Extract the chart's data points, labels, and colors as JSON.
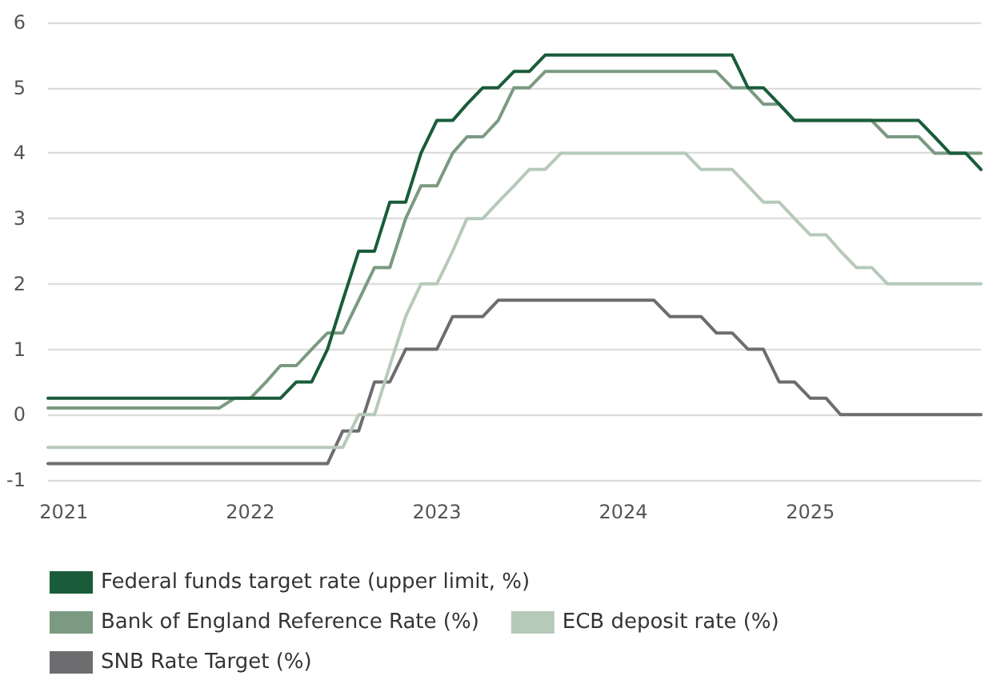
{
  "chart_data": {
    "type": "line",
    "x": [
      "2020-12",
      "2021-01",
      "2021-02",
      "2021-03",
      "2021-04",
      "2021-05",
      "2021-06",
      "2021-07",
      "2021-08",
      "2021-09",
      "2021-10",
      "2021-11",
      "2021-12",
      "2022-01",
      "2022-02",
      "2022-03",
      "2022-04",
      "2022-05",
      "2022-06",
      "2022-07",
      "2022-08",
      "2022-09",
      "2022-10",
      "2022-11",
      "2022-12",
      "2023-01",
      "2023-02",
      "2023-03",
      "2023-04",
      "2023-05",
      "2023-06",
      "2023-07",
      "2023-08",
      "2023-09",
      "2023-10",
      "2023-11",
      "2023-12",
      "2024-01",
      "2024-02",
      "2024-03",
      "2024-04",
      "2024-05",
      "2024-06",
      "2024-07",
      "2024-08",
      "2024-09",
      "2024-10",
      "2024-11",
      "2024-12",
      "2025-01",
      "2025-02",
      "2025-03",
      "2025-04",
      "2025-05",
      "2025-06",
      "2025-07",
      "2025-08",
      "2025-09",
      "2025-10",
      "2025-11",
      "2025-12"
    ],
    "series": [
      {
        "name": "Federal funds target rate (upper limit, %)",
        "color": "#1a5c3a",
        "values": [
          0.25,
          0.25,
          0.25,
          0.25,
          0.25,
          0.25,
          0.25,
          0.25,
          0.25,
          0.25,
          0.25,
          0.25,
          0.25,
          0.25,
          0.25,
          0.25,
          0.5,
          0.5,
          1.0,
          1.75,
          2.5,
          2.5,
          3.25,
          3.25,
          4.0,
          4.5,
          4.5,
          4.75,
          5.0,
          5.0,
          5.25,
          5.25,
          5.5,
          5.5,
          5.5,
          5.5,
          5.5,
          5.5,
          5.5,
          5.5,
          5.5,
          5.5,
          5.5,
          5.5,
          5.5,
          5.0,
          5.0,
          4.75,
          4.5,
          4.5,
          4.5,
          4.5,
          4.5,
          4.5,
          4.5,
          4.5,
          4.5,
          4.25,
          4.0,
          4.0,
          3.75
        ]
      },
      {
        "name": "Bank of England Reference Rate (%)",
        "color": "#7b9a81",
        "values": [
          0.1,
          0.1,
          0.1,
          0.1,
          0.1,
          0.1,
          0.1,
          0.1,
          0.1,
          0.1,
          0.1,
          0.1,
          0.25,
          0.25,
          0.5,
          0.75,
          0.75,
          1.0,
          1.25,
          1.25,
          1.75,
          2.25,
          2.25,
          3.0,
          3.5,
          3.5,
          4.0,
          4.25,
          4.25,
          4.5,
          5.0,
          5.0,
          5.25,
          5.25,
          5.25,
          5.25,
          5.25,
          5.25,
          5.25,
          5.25,
          5.25,
          5.25,
          5.25,
          5.25,
          5.0,
          5.0,
          4.75,
          4.75,
          4.5,
          4.5,
          4.5,
          4.5,
          4.5,
          4.5,
          4.25,
          4.25,
          4.25,
          4.0,
          4.0,
          4.0,
          4.0
        ]
      },
      {
        "name": "ECB deposit rate (%)",
        "color": "#b7c9b9",
        "values": [
          -0.5,
          -0.5,
          -0.5,
          -0.5,
          -0.5,
          -0.5,
          -0.5,
          -0.5,
          -0.5,
          -0.5,
          -0.5,
          -0.5,
          -0.5,
          -0.5,
          -0.5,
          -0.5,
          -0.5,
          -0.5,
          -0.5,
          -0.5,
          0,
          0,
          0.75,
          1.5,
          2.0,
          2.0,
          2.5,
          3.0,
          3.0,
          3.25,
          3.5,
          3.75,
          3.75,
          4.0,
          4.0,
          4.0,
          4.0,
          4.0,
          4.0,
          4.0,
          4.0,
          4.0,
          3.75,
          3.75,
          3.75,
          3.5,
          3.25,
          3.25,
          3.0,
          2.75,
          2.75,
          2.5,
          2.25,
          2.25,
          2.0,
          2.0,
          2.0,
          2.0,
          2.0,
          2.0,
          2.0
        ]
      },
      {
        "name": "SNB Rate Target (%)",
        "color": "#6d6d70",
        "values": [
          -0.75,
          -0.75,
          -0.75,
          -0.75,
          -0.75,
          -0.75,
          -0.75,
          -0.75,
          -0.75,
          -0.75,
          -0.75,
          -0.75,
          -0.75,
          -0.75,
          -0.75,
          -0.75,
          -0.75,
          -0.75,
          -0.75,
          -0.25,
          -0.25,
          0.5,
          0.5,
          1.0,
          1.0,
          1.0,
          1.5,
          1.5,
          1.5,
          1.75,
          1.75,
          1.75,
          1.75,
          1.75,
          1.75,
          1.75,
          1.75,
          1.75,
          1.75,
          1.75,
          1.5,
          1.5,
          1.5,
          1.25,
          1.25,
          1.0,
          1.0,
          0.5,
          0.5,
          0.25,
          0.25,
          0,
          0,
          0,
          0,
          0,
          0,
          0,
          0,
          0,
          0
        ]
      }
    ],
    "xlim": [
      "2020-12",
      "2025-12"
    ],
    "xticks": [
      {
        "value": "2021-01",
        "label": "2021"
      },
      {
        "value": "2022-01",
        "label": "2022"
      },
      {
        "value": "2023-01",
        "label": "2023"
      },
      {
        "value": "2024-01",
        "label": "2024"
      },
      {
        "value": "2025-01",
        "label": "2025"
      }
    ],
    "ylim": [
      -1,
      6
    ],
    "yticks": [
      -1,
      0,
      1,
      2,
      3,
      4,
      5,
      6
    ],
    "grid": "y",
    "legend": "bottom",
    "marker": "none",
    "line_style": "solid"
  }
}
